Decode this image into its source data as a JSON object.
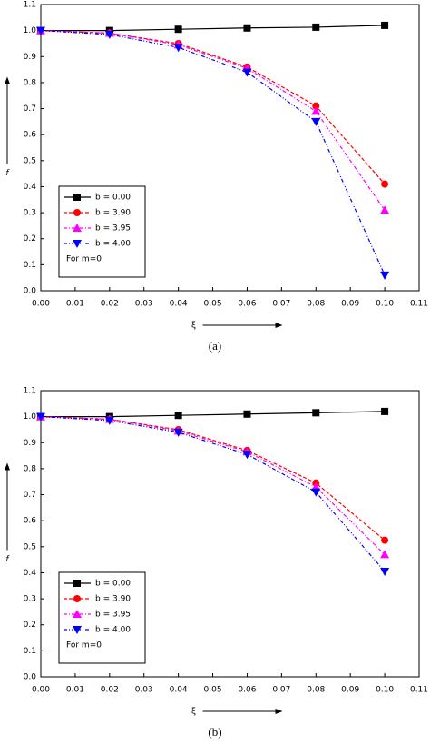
{
  "chart_data": [
    {
      "type": "line",
      "xlabel": "ξ",
      "ylabel": "f",
      "annotation": "For m=0",
      "caption": "(a)",
      "x": [
        0,
        0.02,
        0.04,
        0.06,
        0.08,
        0.1
      ],
      "series": [
        {
          "name": "b = 0.00",
          "color": "#000000",
          "marker": "square",
          "dash": "solid",
          "values": [
            1.0,
            1.0,
            1.005,
            1.01,
            1.013,
            1.02
          ]
        },
        {
          "name": "b = 3.90",
          "color": "#ff0000",
          "marker": "circle",
          "dash": "dashed",
          "values": [
            1.0,
            0.99,
            0.95,
            0.86,
            0.71,
            0.41
          ]
        },
        {
          "name": "b = 3.95",
          "color": "#ff00ff",
          "marker": "triangle-up",
          "dash": "dashdot",
          "values": [
            1.0,
            0.99,
            0.945,
            0.855,
            0.69,
            0.31
          ]
        },
        {
          "name": "b = 4.00",
          "color": "#0000ff",
          "marker": "triangle-down",
          "dash": "dashdotdot",
          "values": [
            1.0,
            0.985,
            0.935,
            0.84,
            0.65,
            0.06
          ]
        }
      ],
      "xlim": [
        0,
        0.11
      ],
      "ylim": [
        0,
        1.1
      ],
      "xticks": [
        {
          "value": 0,
          "label": "0.00"
        },
        0.01,
        0.02,
        0.03,
        0.04,
        0.05,
        0.06,
        0.07,
        0.08,
        0.09,
        {
          "value": 0.1,
          "label": "0.10"
        },
        0.11
      ],
      "yticks": [
        {
          "value": 0,
          "label": "0.0"
        },
        0.1,
        0.2,
        0.3,
        0.4,
        0.5,
        0.6,
        0.7,
        0.8,
        0.9,
        {
          "value": 1,
          "label": "1.0"
        },
        1.1
      ],
      "legend": "lower left"
    },
    {
      "type": "line",
      "xlabel": "ξ",
      "ylabel": "f",
      "annotation": "For m=0",
      "caption": "(b)",
      "x": [
        0,
        0.02,
        0.04,
        0.06,
        0.08,
        0.1
      ],
      "series": [
        {
          "name": "b = 0.00",
          "color": "#000000",
          "marker": "square",
          "dash": "solid",
          "values": [
            1.0,
            1.0,
            1.005,
            1.01,
            1.015,
            1.02
          ]
        },
        {
          "name": "b = 3.90",
          "color": "#ff0000",
          "marker": "circle",
          "dash": "dashed",
          "values": [
            1.0,
            0.99,
            0.95,
            0.87,
            0.745,
            0.525
          ]
        },
        {
          "name": "b = 3.95",
          "color": "#ff00ff",
          "marker": "triangle-up",
          "dash": "dashdot",
          "values": [
            1.0,
            0.99,
            0.945,
            0.865,
            0.73,
            0.47
          ]
        },
        {
          "name": "b = 4.00",
          "color": "#0000ff",
          "marker": "triangle-down",
          "dash": "dashdotdot",
          "values": [
            1.0,
            0.985,
            0.94,
            0.855,
            0.71,
            0.405
          ]
        }
      ],
      "xlim": [
        0,
        0.11
      ],
      "ylim": [
        0,
        1.1
      ],
      "xticks": [
        {
          "value": 0,
          "label": "0.00"
        },
        0.01,
        0.02,
        0.03,
        0.04,
        0.05,
        0.06,
        0.07,
        0.08,
        0.09,
        {
          "value": 0.1,
          "label": "0.10"
        },
        0.11
      ],
      "yticks": [
        {
          "value": 0,
          "label": "0.0"
        },
        0.1,
        0.2,
        0.3,
        0.4,
        0.5,
        0.6,
        0.7,
        0.8,
        0.9,
        {
          "value": 1,
          "label": "1.0"
        },
        1.1
      ],
      "legend": "lower left"
    }
  ]
}
